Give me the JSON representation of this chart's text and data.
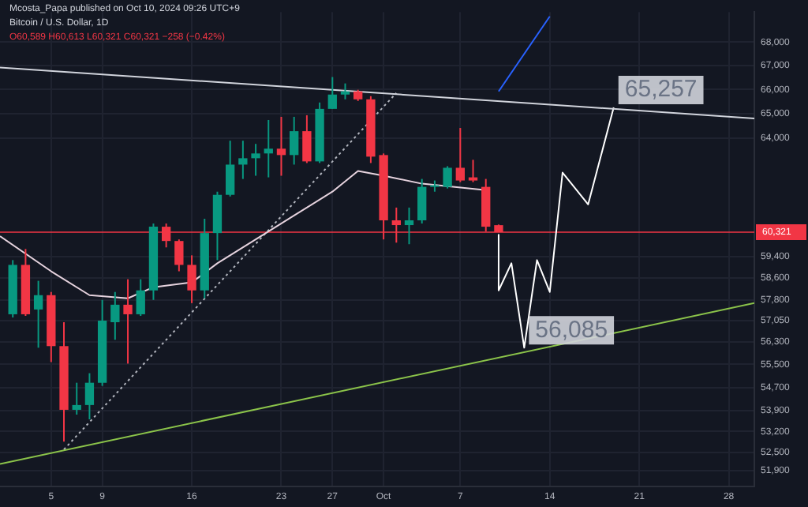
{
  "chart_data": {
    "type": "candlestick",
    "title": "Bitcoin / U.S. Dollar, 1D",
    "subtitle": "O60,589 H60,613 L60,321 C60,321 −258 (−0.42%)",
    "x": [
      "2024-09-02",
      "2024-09-03",
      "2024-09-04",
      "2024-09-05",
      "2024-09-06",
      "2024-09-07",
      "2024-09-08",
      "2024-09-09",
      "2024-09-10",
      "2024-09-11",
      "2024-09-12",
      "2024-09-13",
      "2024-09-14",
      "2024-09-15",
      "2024-09-16",
      "2024-09-17",
      "2024-09-18",
      "2024-09-19",
      "2024-09-20",
      "2024-09-21",
      "2024-09-22",
      "2024-09-23",
      "2024-09-24",
      "2024-09-25",
      "2024-09-26",
      "2024-09-27",
      "2024-09-28",
      "2024-09-29",
      "2024-09-30",
      "2024-10-01",
      "2024-10-02",
      "2024-10-03",
      "2024-10-04",
      "2024-10-05",
      "2024-10-06",
      "2024-10-07",
      "2024-10-08",
      "2024-10-09",
      "2024-10-10"
    ],
    "ohlc": [
      [
        57280,
        59269,
        57165,
        59091
      ],
      [
        59091,
        59686,
        57222,
        57280
      ],
      [
        57453,
        58500,
        56086,
        57974
      ],
      [
        57974,
        58091,
        55582,
        56142
      ],
      [
        56142,
        56994,
        52863,
        53933
      ],
      [
        53933,
        54861,
        53771,
        54096
      ],
      [
        54096,
        55192,
        53609,
        54861
      ],
      [
        54861,
        57800,
        54752,
        57051
      ],
      [
        56994,
        58091,
        56368,
        57626
      ],
      [
        57626,
        58559,
        55527,
        57280
      ],
      [
        57280,
        58559,
        57222,
        58149
      ],
      [
        58149,
        60652,
        57800,
        60530
      ],
      [
        60530,
        60652,
        59746,
        59987
      ],
      [
        59987,
        60047,
        58853,
        59091
      ],
      [
        59091,
        59447,
        57684,
        58149
      ],
      [
        58149,
        60835,
        57858,
        60288
      ],
      [
        60288,
        61881,
        59269,
        61758
      ],
      [
        61758,
        63901,
        61695,
        62946
      ],
      [
        62946,
        63901,
        62380,
        63199
      ],
      [
        63199,
        63773,
        62506,
        63390
      ],
      [
        63390,
        64740,
        62442,
        63581
      ],
      [
        63581,
        64870,
        62506,
        63326
      ],
      [
        63326,
        64870,
        62946,
        64286
      ],
      [
        64286,
        64935,
        63009,
        63073
      ],
      [
        63073,
        65458,
        63009,
        65196
      ],
      [
        65196,
        66517,
        65196,
        65787
      ],
      [
        65787,
        66250,
        65589,
        65919
      ],
      [
        65919,
        65985,
        65523,
        65589
      ],
      [
        65589,
        65721,
        63009,
        63263
      ],
      [
        63326,
        63390,
        60047,
        60774
      ],
      [
        60774,
        61264,
        59926,
        60591
      ],
      [
        60591,
        61264,
        59866,
        60774
      ],
      [
        60774,
        62380,
        60652,
        62069
      ],
      [
        62069,
        62318,
        61881,
        62131
      ],
      [
        62069,
        62884,
        62006,
        62820
      ],
      [
        62820,
        64416,
        62255,
        62318
      ],
      [
        62442,
        63136,
        62255,
        62318
      ],
      [
        62069,
        62380,
        60348,
        60530
      ],
      [
        60589,
        60613,
        60321,
        60321
      ]
    ],
    "colors": [
      "#089981",
      "#f23645",
      "#089981",
      "#f23645",
      "#f23645",
      "#089981",
      "#089981",
      "#089981",
      "#089981",
      "#f23645",
      "#089981",
      "#089981",
      "#f23645",
      "#f23645",
      "#f23645",
      "#089981",
      "#089981",
      "#089981",
      "#089981",
      "#089981",
      "#089981",
      "#f23645",
      "#089981",
      "#f23645",
      "#089981",
      "#089981",
      "#089981",
      "#f23645",
      "#f23645",
      "#f23645",
      "#f23645",
      "#089981",
      "#089981",
      "#089981",
      "#089981",
      "#f23645",
      "#f23645",
      "#f23645",
      "#f23645"
    ],
    "series": [
      {
        "type": "line",
        "color": "#e6d3de",
        "x": [
          "2024-09-01",
          "2024-09-05",
          "2024-09-08",
          "2024-09-11",
          "2024-09-13",
          "2024-09-16",
          "2024-09-18",
          "2024-09-21",
          "2024-09-24",
          "2024-09-27",
          "2024-09-29",
          "2024-10-01",
          "2024-10-04",
          "2024-10-09"
        ],
        "values": [
          60167,
          58853,
          57974,
          57858,
          58266,
          58442,
          59150,
          60047,
          60957,
          61881,
          62694,
          62506,
          62193,
          61944
        ]
      },
      {
        "type": "line",
        "color": "#d1d4dc",
        "x": [
          "2024-09-01",
          "2024-10-30"
        ],
        "values": [
          66921,
          64805
        ]
      },
      {
        "type": "line",
        "color": "#8bc34a",
        "x": [
          "2024-09-01",
          "2024-10-30"
        ],
        "values": [
          52124,
          57684
        ]
      },
      {
        "type": "line",
        "color": "#b2b5be",
        "line_style": "dotted",
        "x": [
          "2024-09-06",
          "2024-10-02"
        ],
        "values": [
          52600,
          65853
        ]
      },
      {
        "type": "line",
        "color": "#2962ff",
        "x": [
          "2024-10-10",
          "2024-10-14"
        ],
        "values": [
          65919,
          69107
        ]
      },
      {
        "type": "line",
        "color": "#ffffff",
        "x": [
          "2024-10-10",
          "2024-10-10",
          "2024-10-11",
          "2024-10-12",
          "2024-10-13",
          "2024-10-14",
          "2024-10-15",
          "2024-10-17",
          "2024-10-19"
        ],
        "values": [
          60227,
          58149,
          59150,
          56085,
          59269,
          58091,
          62631,
          61387,
          65257
        ]
      }
    ],
    "ref_lines": [
      {
        "axis": "y",
        "value": 60321,
        "label": "60,321",
        "color": "#f23645"
      }
    ],
    "annotations": [
      "Mcosta_Papa published on Oct 10, 2024 09:26 UTC+9",
      {
        "text": "65,257",
        "x": "2024-10-19",
        "y": 65257
      },
      {
        "text": "56,085",
        "x": "2024-10-12",
        "y": 56085
      }
    ],
    "xlim": [
      "2024-09-01",
      "2024-10-30"
    ],
    "ylim": [
      51400,
      69300
    ],
    "xticks": [
      {
        "value": "2024-09-05",
        "label": "5"
      },
      {
        "value": "2024-09-09",
        "label": "9"
      },
      {
        "value": "2024-09-16",
        "label": "16"
      },
      {
        "value": "2024-09-23",
        "label": "23"
      },
      {
        "value": "2024-09-27",
        "label": "27"
      },
      {
        "value": "2024-10-01",
        "label": "Oct"
      },
      {
        "value": "2024-10-07",
        "label": "7"
      },
      {
        "value": "2024-10-14",
        "label": "14"
      },
      {
        "value": "2024-10-21",
        "label": "21"
      },
      {
        "value": "2024-10-28",
        "label": "28"
      }
    ],
    "yticks": [
      {
        "value": 68000,
        "label": "68,000"
      },
      {
        "value": 67000,
        "label": "67,000"
      },
      {
        "value": 66000,
        "label": "66,000"
      },
      {
        "value": 65000,
        "label": "65,000"
      },
      {
        "value": 64000,
        "label": "64,000"
      },
      {
        "value": 59400,
        "label": "59,400"
      },
      {
        "value": 58600,
        "label": "58,600"
      },
      {
        "value": 57800,
        "label": "57,800"
      },
      {
        "value": 57050,
        "label": "57,050"
      },
      {
        "value": 56300,
        "label": "56,300"
      },
      {
        "value": 55500,
        "label": "55,500"
      },
      {
        "value": 54700,
        "label": "54,700"
      },
      {
        "value": 53900,
        "label": "53,900"
      },
      {
        "value": 53200,
        "label": "53,200"
      },
      {
        "value": 52500,
        "label": "52,500"
      },
      {
        "value": 51900,
        "label": "51,900"
      }
    ],
    "log": true,
    "grid": true
  }
}
